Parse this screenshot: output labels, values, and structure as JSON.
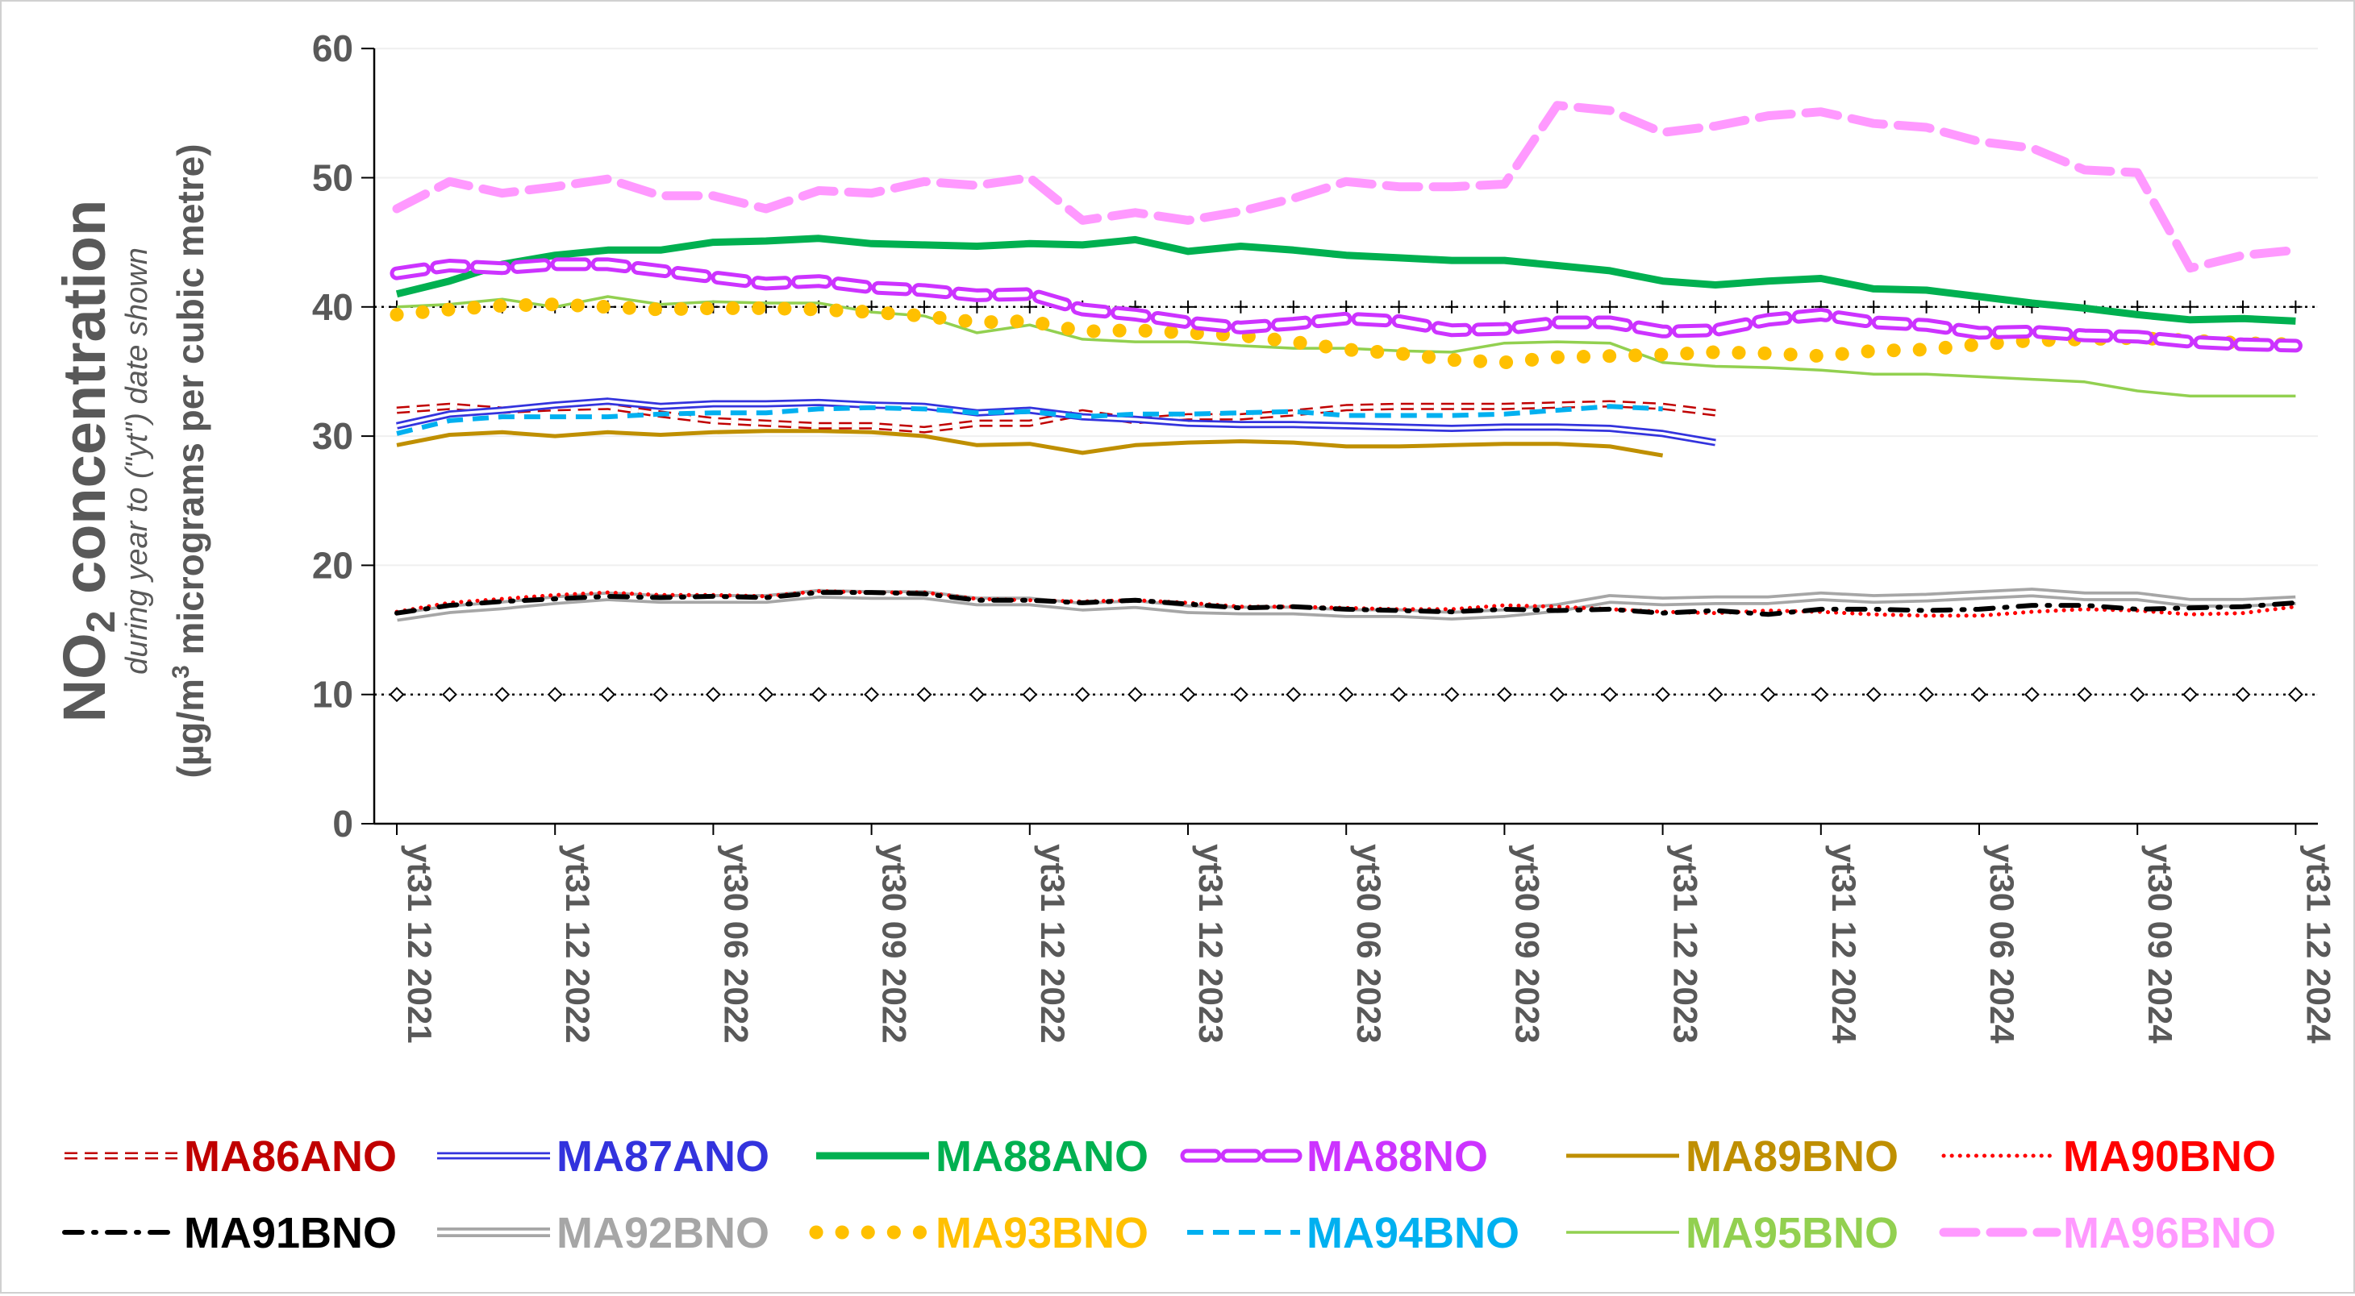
{
  "chart_data": {
    "type": "line",
    "title": "",
    "ylabel_main_prefix": "NO",
    "ylabel_main_sub": "2",
    "ylabel_main_suffix": " concentration",
    "ylabel_sub1": "during year to (\"yt\") date shown",
    "ylabel_sub2_prefix": "(µg/m",
    "ylabel_sub2_sup": "3",
    "ylabel_sub2_suffix": " micrograms per cubic metre)",
    "ylim": [
      0,
      60
    ],
    "yticks": [
      0,
      10,
      20,
      30,
      40,
      50,
      60
    ],
    "xtick_labels": [
      {
        "i": 0,
        "label": "yt31 12 2021"
      },
      {
        "i": 3,
        "label": "yt31 12 2022"
      },
      {
        "i": 6,
        "label": "yt30 06 2022"
      },
      {
        "i": 9,
        "label": "yt30 09 2022"
      },
      {
        "i": 12,
        "label": "yt31 12 2022"
      },
      {
        "i": 15,
        "label": "yt31 12 2023"
      },
      {
        "i": 18,
        "label": "yt30 06 2023"
      },
      {
        "i": 21,
        "label": "yt30 09 2023"
      },
      {
        "i": 24,
        "label": "yt31 12 2023"
      },
      {
        "i": 27,
        "label": "yt31 12 2024"
      },
      {
        "i": 30,
        "label": "yt30 06 2024"
      },
      {
        "i": 33,
        "label": "yt30 09 2024"
      },
      {
        "i": 36,
        "label": "yt31 12 2024"
      }
    ],
    "reference_lines": [
      {
        "y": 40,
        "marker": "plus",
        "color": "#000000"
      },
      {
        "y": 10,
        "marker": "diamond",
        "color": "#000000"
      }
    ],
    "legend_position": "bottom",
    "series": [
      {
        "name": "MA86ANO",
        "color": "#c00000",
        "style": "double-dash",
        "values": [
          32.0,
          32.3,
          32.0,
          32.2,
          32.3,
          31.7,
          31.2,
          31.0,
          30.8,
          30.8,
          30.5,
          31.0,
          31.0,
          31.8,
          31.2,
          31.5,
          31.5,
          31.8,
          32.2,
          32.3,
          32.3,
          32.3,
          32.4,
          32.5,
          32.3,
          31.8
        ]
      },
      {
        "name": "MA87ANO",
        "color": "#3333dd",
        "style": "double-solid",
        "values": [
          30.8,
          31.7,
          32.0,
          32.4,
          32.7,
          32.3,
          32.5,
          32.5,
          32.6,
          32.4,
          32.3,
          31.8,
          32.0,
          31.5,
          31.3,
          31.0,
          30.9,
          30.9,
          30.8,
          30.7,
          30.6,
          30.7,
          30.7,
          30.6,
          30.2,
          29.5
        ]
      },
      {
        "name": "MA88ANO",
        "color": "#00b050",
        "style": "solid-thick",
        "values": [
          41.0,
          42.0,
          43.3,
          44.0,
          44.4,
          44.4,
          45.0,
          45.1,
          45.3,
          44.9,
          44.8,
          44.7,
          44.9,
          44.8,
          45.2,
          44.3,
          44.7,
          44.4,
          44.0,
          43.8,
          43.6,
          43.6,
          43.2,
          42.8,
          42.0,
          41.7,
          42.0,
          42.2,
          41.4,
          41.3,
          40.8,
          40.3,
          39.9,
          39.4,
          39.0,
          39.1,
          38.9
        ]
      },
      {
        "name": "MA88NO",
        "color": "#cc33ff",
        "style": "double-dash-thick",
        "values": [
          42.6,
          43.2,
          43.0,
          43.3,
          43.3,
          42.8,
          42.3,
          41.8,
          42.0,
          41.5,
          41.3,
          40.9,
          41.0,
          39.8,
          39.4,
          38.8,
          38.4,
          38.7,
          39.1,
          38.9,
          38.2,
          38.3,
          38.8,
          38.8,
          38.1,
          38.2,
          39.0,
          39.4,
          38.8,
          38.6,
          38.0,
          38.1,
          37.8,
          37.7,
          37.3,
          37.1,
          37.0
        ]
      },
      {
        "name": "MA89BNO",
        "color": "#bf8f00",
        "style": "solid",
        "values": [
          29.3,
          30.1,
          30.3,
          30.0,
          30.3,
          30.1,
          30.3,
          30.4,
          30.4,
          30.3,
          30.0,
          29.3,
          29.4,
          28.7,
          29.3,
          29.5,
          29.6,
          29.5,
          29.2,
          29.2,
          29.3,
          29.4,
          29.4,
          29.2,
          28.5
        ]
      },
      {
        "name": "MA90BNO",
        "color": "#ff0000",
        "style": "dotted",
        "values": [
          16.4,
          17.1,
          17.4,
          17.7,
          17.9,
          17.7,
          17.7,
          17.6,
          18.0,
          17.9,
          17.9,
          17.4,
          17.3,
          17.2,
          17.3,
          17.1,
          16.8,
          16.8,
          16.7,
          16.6,
          16.6,
          16.9,
          16.8,
          16.6,
          16.4,
          16.3,
          16.5,
          16.4,
          16.2,
          16.1,
          16.1,
          16.4,
          16.6,
          16.5,
          16.2,
          16.3,
          16.8
        ]
      },
      {
        "name": "MA91BNO",
        "color": "#000000",
        "style": "dash-dot",
        "values": [
          16.3,
          16.9,
          17.2,
          17.4,
          17.6,
          17.5,
          17.6,
          17.5,
          17.9,
          17.9,
          17.8,
          17.3,
          17.3,
          17.1,
          17.3,
          17.0,
          16.7,
          16.8,
          16.6,
          16.5,
          16.4,
          16.6,
          16.5,
          16.6,
          16.3,
          16.5,
          16.2,
          16.6,
          16.6,
          16.5,
          16.6,
          16.9,
          16.9,
          16.6,
          16.7,
          16.8,
          17.1
        ]
      },
      {
        "name": "MA92BNO",
        "color": "#a6a6a6",
        "style": "double-gray",
        "values": [
          16.0,
          16.6,
          16.9,
          17.3,
          17.6,
          17.4,
          17.4,
          17.4,
          17.8,
          17.7,
          17.7,
          17.2,
          17.2,
          16.8,
          17.0,
          16.6,
          16.5,
          16.5,
          16.3,
          16.3,
          16.1,
          16.3,
          16.7,
          17.4,
          17.2,
          17.3,
          17.3,
          17.6,
          17.4,
          17.5,
          17.7,
          17.9,
          17.6,
          17.6,
          17.1,
          17.1,
          17.3
        ]
      },
      {
        "name": "MA93BNO",
        "color": "#ffc000",
        "style": "dots-large",
        "values": [
          39.4,
          39.8,
          40.1,
          40.2,
          40.0,
          39.8,
          39.9,
          39.9,
          39.8,
          39.6,
          39.3,
          38.8,
          38.9,
          38.1,
          38.2,
          38.0,
          37.8,
          37.3,
          36.7,
          36.4,
          35.9,
          35.7,
          36.1,
          36.2,
          36.3,
          36.5,
          36.4,
          36.2,
          36.6,
          36.7,
          37.1,
          37.4,
          37.5,
          37.6,
          37.4,
          37.2,
          37.1
        ]
      },
      {
        "name": "MA94BNO",
        "color": "#00b0f0",
        "style": "dashed",
        "values": [
          30.2,
          31.2,
          31.5,
          31.5,
          31.5,
          31.7,
          31.8,
          31.8,
          32.1,
          32.2,
          32.1,
          31.8,
          31.9,
          31.5,
          31.7,
          31.7,
          31.8,
          31.9,
          31.6,
          31.6,
          31.6,
          31.7,
          32.0,
          32.3,
          32.1
        ]
      },
      {
        "name": "MA95BNO",
        "color": "#92d050",
        "style": "solid-thin",
        "values": [
          40.0,
          40.2,
          40.6,
          40.0,
          40.8,
          40.2,
          40.4,
          40.3,
          40.3,
          39.6,
          39.3,
          38.0,
          38.6,
          37.5,
          37.3,
          37.3,
          37.0,
          36.8,
          36.8,
          36.6,
          36.5,
          37.2,
          37.3,
          37.2,
          35.7,
          35.4,
          35.3,
          35.1,
          34.8,
          34.8,
          34.6,
          34.4,
          34.2,
          33.5,
          33.1,
          33.1,
          33.1
        ]
      },
      {
        "name": "MA96BNO",
        "color": "#ff99ff",
        "style": "dashed-thick",
        "values": [
          47.6,
          49.7,
          48.8,
          49.3,
          49.9,
          48.6,
          48.6,
          47.6,
          49.0,
          48.8,
          49.7,
          49.4,
          50.0,
          46.7,
          47.3,
          46.7,
          47.4,
          48.4,
          49.7,
          49.3,
          49.3,
          49.5,
          55.6,
          55.2,
          53.5,
          54.0,
          54.8,
          55.1,
          54.2,
          53.9,
          52.8,
          52.3,
          50.6,
          50.4,
          43.0,
          44.0,
          44.4
        ]
      }
    ]
  }
}
